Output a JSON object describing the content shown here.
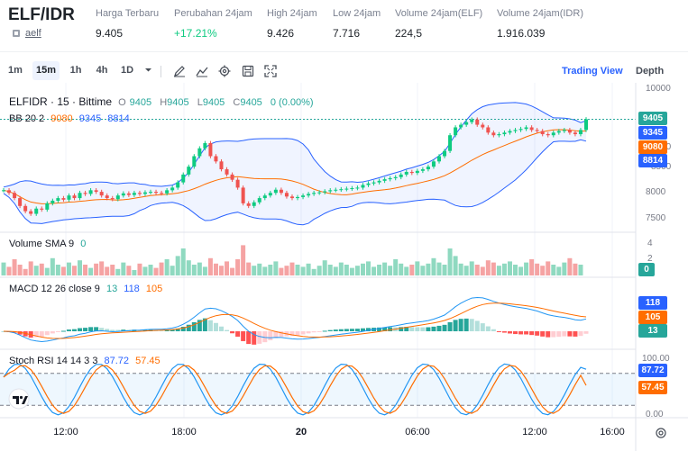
{
  "header": {
    "pair": "ELF/IDR",
    "base_link": "aelf",
    "stats": [
      {
        "label": "Harga Terbaru",
        "value": "9.405",
        "color": "#1e2329"
      },
      {
        "label": "Perubahan 24jam",
        "value": "+17.21%",
        "color": "#0ecb81"
      },
      {
        "label": "High 24jam",
        "value": "9.426",
        "color": "#1e2329"
      },
      {
        "label": "Low 24jam",
        "value": "7.716",
        "color": "#1e2329"
      },
      {
        "label": "Volume 24jam(ELF)",
        "value": "224,5",
        "color": "#1e2329"
      },
      {
        "label": "Volume 24jam(IDR)",
        "value": "1.916.039",
        "color": "#1e2329"
      }
    ]
  },
  "toolbar": {
    "timeframes": [
      "1m",
      "15m",
      "1h",
      "4h",
      "1D"
    ],
    "active_timeframe": "15m",
    "tools": [
      "draw-pencil-icon",
      "indicator-chart-icon",
      "settings-gear-icon",
      "save-disk-icon",
      "fullscreen-icon"
    ],
    "views": [
      "Trading View",
      "Depth"
    ],
    "active_view": "Trading View"
  },
  "legends": {
    "symbol": "ELFIDR · 15 · Bittime",
    "ohlc": {
      "o_label": "O",
      "o": "9405",
      "h_label": "H",
      "h": "9405",
      "l_label": "L",
      "l": "9405",
      "c_label": "C",
      "c": "9405",
      "chg": "0 (0.00%)"
    },
    "bb": {
      "name": "BB 20 2",
      "basis": "9080",
      "upper": "9345",
      "lower": "8814"
    },
    "volume": {
      "name": "Volume SMA 9",
      "value": "0"
    },
    "macd": {
      "name": "MACD 12 26 close 9",
      "hist": "13",
      "macd": "118",
      "signal": "105"
    },
    "rsi": {
      "name": "Stoch RSI 14 14 3 3",
      "k": "87.72",
      "d": "57.45"
    }
  },
  "price_axis": {
    "ticks": [
      "10000",
      "9000",
      "8500",
      "8000",
      "7500"
    ],
    "tags": {
      "last": "9405",
      "upper": "9345",
      "basis": "9080",
      "lower": "8814"
    }
  },
  "volume_axis": {
    "ticks": [
      "4",
      "2"
    ],
    "tag": "0"
  },
  "macd_axis": {
    "tags": [
      "118",
      "105",
      "13"
    ]
  },
  "rsi_axis": {
    "ticks": [
      "100.00",
      "0.00"
    ],
    "tags": [
      "87.72",
      "57.45"
    ]
  },
  "time_axis": {
    "ticks": [
      "12:00",
      "18:00",
      "20",
      "06:00",
      "12:00",
      "16:00"
    ]
  },
  "colors": {
    "up": "#26a69a",
    "up_bright": "#0ecb81",
    "down": "#ef5350",
    "bb_line": "#2962ff",
    "bb_basis": "#ff6d00",
    "macd_line": "#2196f3",
    "signal_line": "#ff6d00",
    "rsi_k": "#2196f3",
    "rsi_d": "#ff6d00",
    "accent": "#2962ff"
  },
  "chart_data": {
    "type": "candlestick",
    "price_range": [
      7300,
      10100
    ],
    "closes": [
      8050,
      8000,
      7900,
      7750,
      7650,
      7600,
      7700,
      7680,
      7800,
      7850,
      7900,
      7870,
      7950,
      7900,
      8000,
      7980,
      8050,
      8020,
      7950,
      7900,
      7880,
      7950,
      7990,
      7960,
      8000,
      7980,
      8010,
      8020,
      8000,
      7990,
      8050,
      8100,
      8200,
      8350,
      8500,
      8700,
      8850,
      8950,
      8700,
      8600,
      8450,
      8350,
      8250,
      8100,
      7800,
      7750,
      7820,
      7900,
      7950,
      8000,
      8060,
      8000,
      7930,
      7900,
      7920,
      7950,
      7980,
      8000,
      8010,
      8030,
      8050,
      8060,
      8070,
      8080,
      8090,
      8100,
      8150,
      8180,
      8200,
      8230,
      8260,
      8280,
      8300,
      8350,
      8400,
      8380,
      8420,
      8450,
      8500,
      8600,
      8700,
      8800,
      9100,
      9250,
      9300,
      9350,
      9400,
      9300,
      9250,
      9150,
      9100,
      9120,
      9150,
      9180,
      9200,
      9220,
      9250,
      9200,
      9180,
      9120,
      9100,
      9150,
      9180,
      9200,
      9150,
      9120,
      9200,
      9405
    ],
    "volume": [
      1.2,
      0.8,
      1.5,
      1.0,
      0.6,
      1.3,
      0.9,
      1.1,
      0.7,
      1.6,
      1.0,
      0.8,
      1.2,
      0.9,
      1.4,
      1.0,
      0.7,
      1.1,
      1.3,
      0.8,
      1.0,
      0.6,
      1.2,
      0.9,
      0.5,
      1.1,
      0.8,
      1.0,
      0.7,
      1.2,
      1.5,
      0.9,
      1.8,
      2.5,
      1.4,
      1.0,
      1.2,
      0.8,
      1.6,
      1.1,
      0.9,
      1.3,
      0.7,
      1.5,
      2.8,
      1.2,
      0.9,
      1.1,
      0.8,
      1.0,
      1.3,
      0.7,
      0.9,
      1.2,
      1.0,
      0.8,
      1.1,
      0.6,
      0.9,
      1.4,
      1.0,
      0.8,
      1.2,
      1.0,
      0.7,
      0.9,
      1.1,
      1.3,
      0.8,
      1.0,
      1.2,
      0.9,
      1.5,
      1.1,
      0.8,
      1.0,
      1.3,
      0.9,
      1.1,
      1.6,
      1.2,
      1.0,
      2.5,
      1.8,
      1.1,
      0.9,
      1.3,
      1.0,
      0.8,
      1.4,
      1.2,
      0.9,
      1.1,
      1.3,
      1.0,
      0.8,
      1.2,
      1.5,
      1.1,
      0.9,
      1.3,
      1.0,
      0.8,
      1.2,
      1.6,
      1.1,
      1.0,
      0.0
    ]
  }
}
